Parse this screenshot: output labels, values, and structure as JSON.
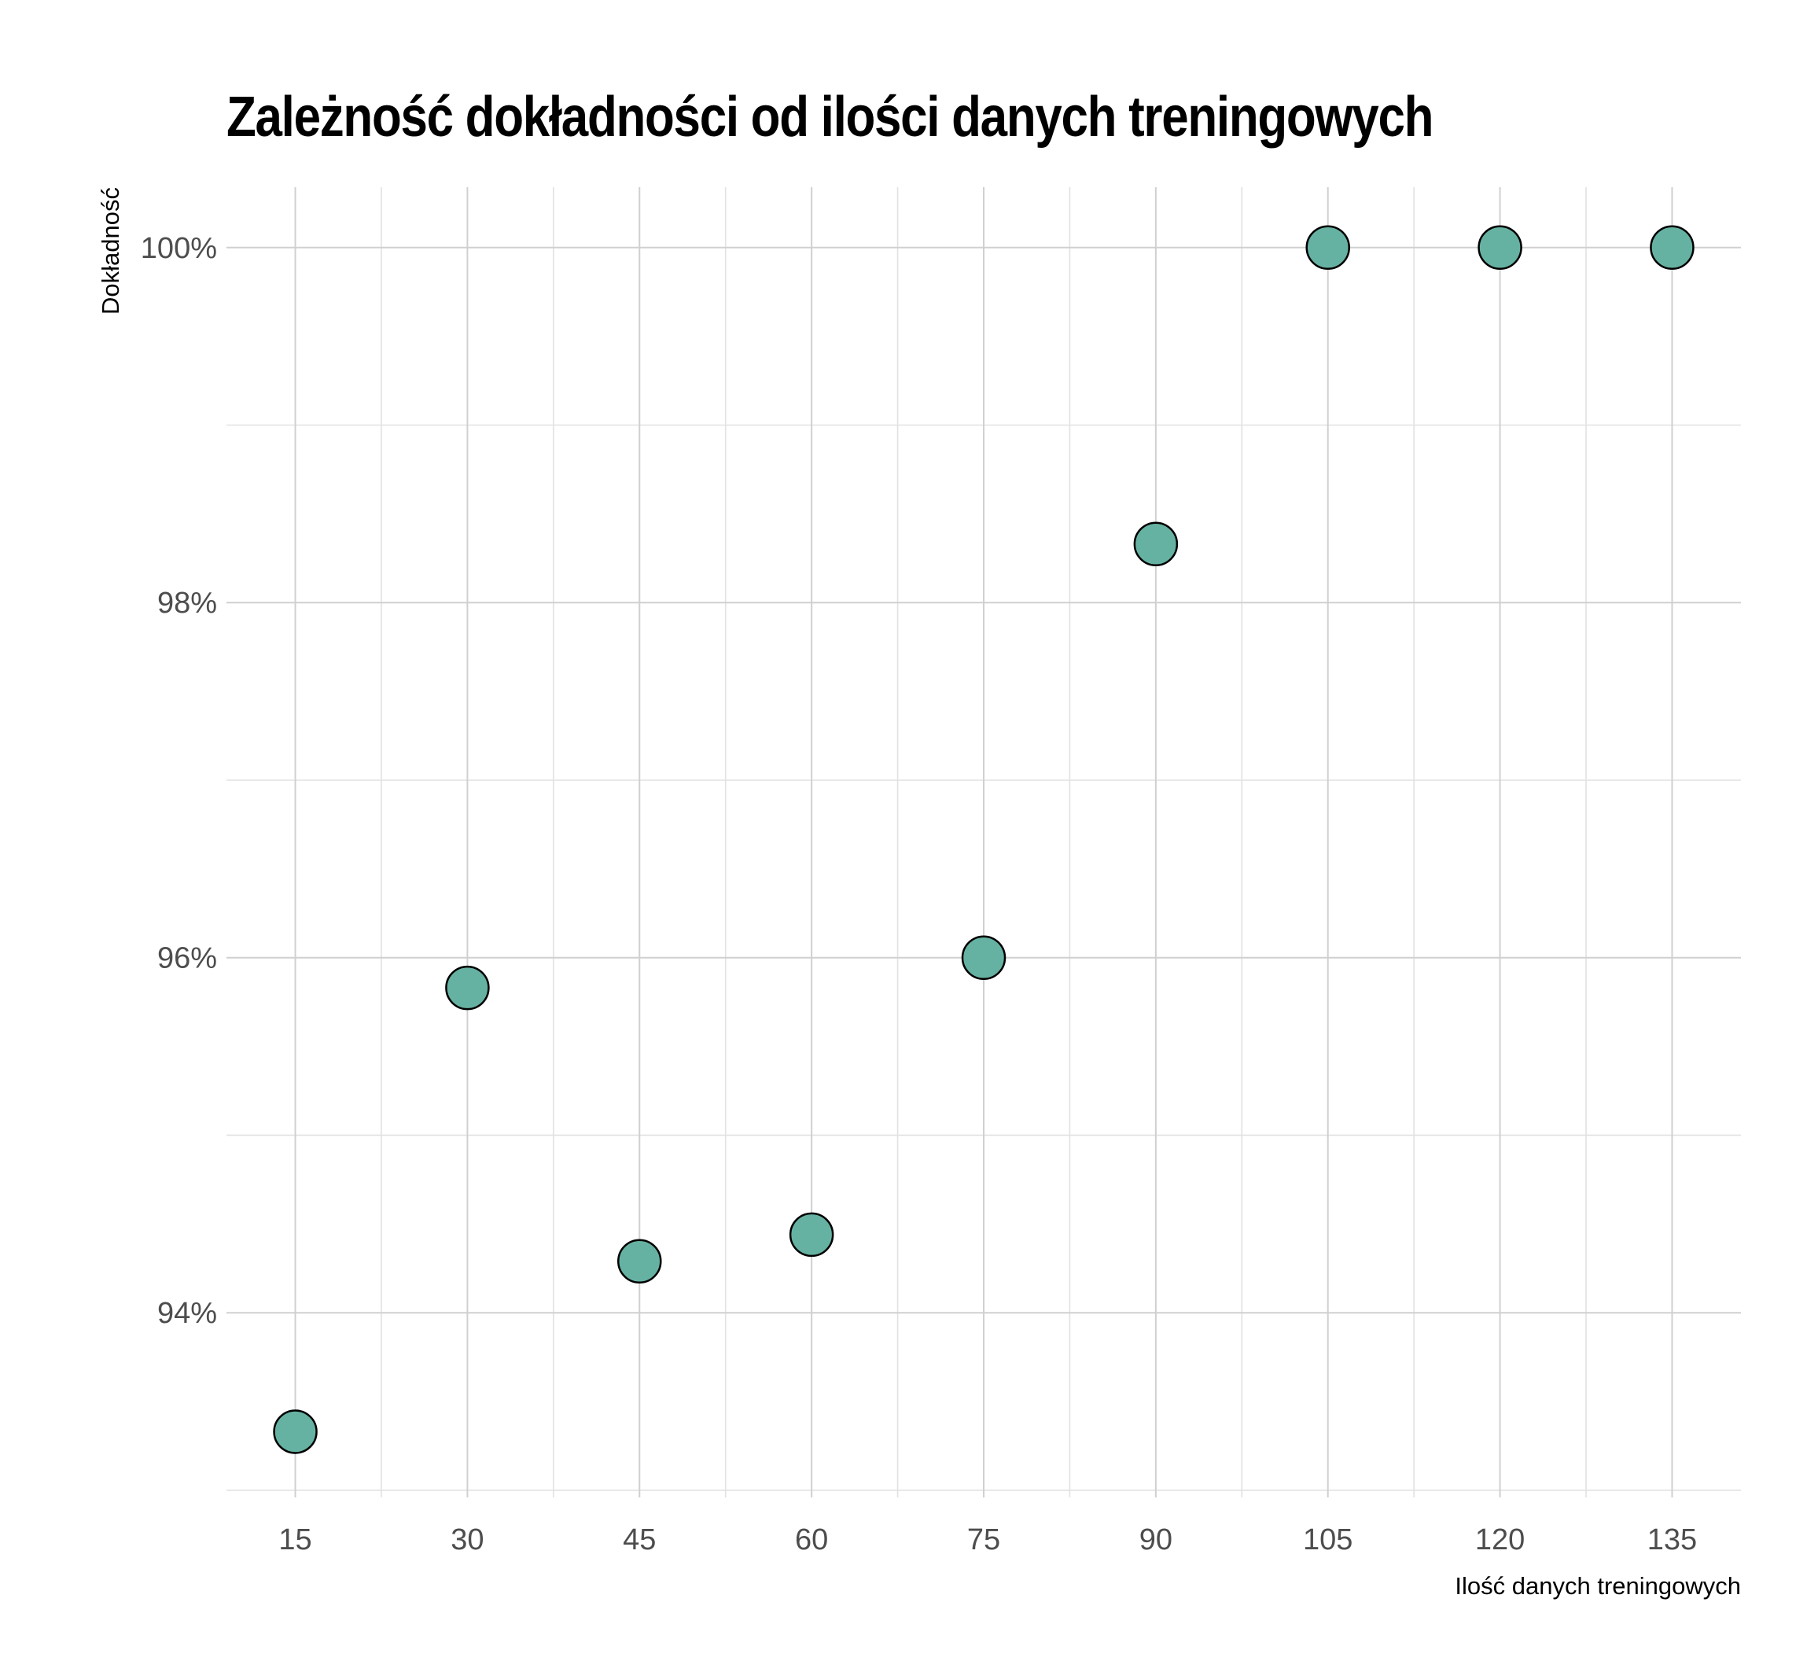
{
  "chart_data": {
    "type": "scatter",
    "title": "Zależność dokładności od ilości danych treningowych",
    "xlabel": "Ilość danych treningowych",
    "ylabel": "Dokładność",
    "x": [
      15,
      30,
      45,
      60,
      75,
      90,
      105,
      120,
      135
    ],
    "y": [
      93.33,
      95.83,
      94.29,
      94.44,
      96.0,
      98.33,
      100.0,
      100.0,
      100.0
    ],
    "x_ticks": [
      15,
      30,
      45,
      60,
      75,
      90,
      105,
      120,
      135
    ],
    "x_tick_labels": [
      "15",
      "30",
      "45",
      "60",
      "75",
      "90",
      "105",
      "120",
      "135"
    ],
    "y_ticks": [
      94,
      96,
      98,
      100
    ],
    "y_tick_labels": [
      "94%",
      "96%",
      "98%",
      "100%"
    ],
    "xlim": [
      9,
      141
    ],
    "ylim": [
      92.96,
      100.34
    ],
    "grid": true,
    "legend": "none",
    "colors": {
      "point_fill": "#66b2a2",
      "point_stroke": "#000000",
      "grid": "#d0d0d0",
      "tick_text": "#4d4d4d",
      "title": "#000000"
    }
  }
}
